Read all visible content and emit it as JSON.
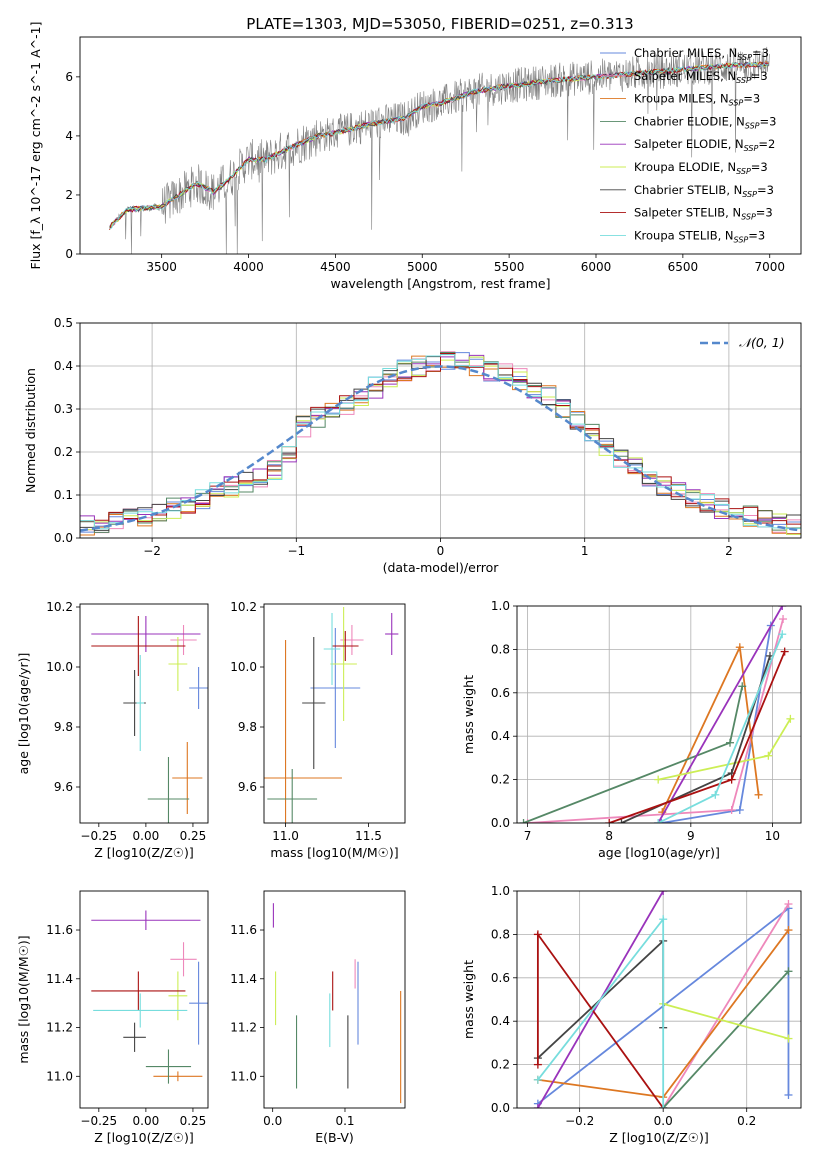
{
  "title": "PLATE=1303, MJD=53050, FIBERID=0251, z=0.313",
  "colors": {
    "Chabrier MILES": "#6688dd",
    "Salpeter MILES": "#ee88bb",
    "Kroupa MILES": "#dd7722",
    "Chabrier ELODIE": "#558866",
    "Salpeter ELODIE": "#9933bb",
    "Kroupa ELODIE": "#ccee55",
    "Chabrier STELIB": "#444444",
    "Salpeter STELIB": "#aa1111",
    "Kroupa STELIB": "#77dddd",
    "data": "#808080",
    "normal": "#5588cc"
  },
  "chart_data": [
    {
      "type": "line",
      "panel": "spectrum",
      "xlabel": "wavelength [Angstrom, rest frame]",
      "ylabel": "Flux [f_λ 10^-17 erg cm^-2 s^-1 A^-1]",
      "xlim": [
        3030,
        7180
      ],
      "ylim": [
        0,
        7.35
      ],
      "xticks": [
        3500,
        4000,
        4500,
        5000,
        5500,
        6000,
        6500,
        7000
      ],
      "yticks": [
        0,
        2,
        4,
        6
      ],
      "legend_position": "top-right",
      "grid": false,
      "data_series": {
        "name": "",
        "x": [
          3200,
          3300,
          3400,
          3500,
          3600,
          3700,
          3800,
          3900,
          4000,
          4100,
          4200,
          4300,
          4400,
          4500,
          4600,
          4700,
          4800,
          4900,
          5000,
          5100,
          5200,
          5300,
          5400,
          5500,
          5600,
          5700,
          5800,
          5900,
          6000,
          6100,
          6200,
          6300,
          6400,
          6500,
          6600,
          6700,
          6800,
          6900,
          7000
        ],
        "y": [
          0.9,
          1.5,
          1.55,
          1.6,
          2.0,
          2.4,
          2.1,
          2.6,
          3.2,
          3.2,
          3.5,
          3.75,
          4.0,
          4.1,
          4.25,
          4.4,
          4.5,
          4.6,
          5.0,
          5.1,
          5.3,
          5.5,
          5.6,
          5.7,
          5.75,
          5.85,
          5.9,
          5.95,
          6.0,
          6.05,
          6.1,
          6.15,
          6.2,
          6.25,
          6.3,
          6.35,
          6.4,
          6.4,
          6.45
        ]
      },
      "model_series": [
        {
          "name": "Chabrier MILES, N_SSP=3"
        },
        {
          "name": "Salpeter MILES, N_SSP=3"
        },
        {
          "name": "Kroupa MILES, N_SSP=3"
        },
        {
          "name": "Chabrier ELODIE, N_SSP=3"
        },
        {
          "name": "Salpeter ELODIE, N_SSP=2"
        },
        {
          "name": "Kroupa ELODIE, N_SSP=3"
        },
        {
          "name": "Chabrier STELIB, N_SSP=3"
        },
        {
          "name": "Salpeter STELIB, N_SSP=3"
        },
        {
          "name": "Kroupa STELIB, N_SSP=3"
        }
      ]
    },
    {
      "type": "line",
      "panel": "residuals",
      "xlabel": "(data-model)/error",
      "ylabel": "Normed distribution",
      "xlim": [
        -2.5,
        2.5
      ],
      "ylim": [
        0,
        0.5
      ],
      "xticks": [
        -2,
        -1,
        0,
        1,
        2
      ],
      "yticks": [
        0.0,
        0.1,
        0.2,
        0.3,
        0.4,
        0.5
      ],
      "grid": true,
      "legend_position": "top-right",
      "legend": "𝒩(0, 1)",
      "bin_edges": [
        -2.5,
        -2.4,
        -2.3,
        -2.2,
        -2.1,
        -2.0,
        -1.9,
        -1.8,
        -1.7,
        -1.6,
        -1.5,
        -1.4,
        -1.3,
        -1.2,
        -1.1,
        -1.0,
        -0.9,
        -0.8,
        -0.7,
        -0.6,
        -0.5,
        -0.4,
        -0.3,
        -0.2,
        -0.1,
        0.0,
        0.1,
        0.2,
        0.3,
        0.4,
        0.5,
        0.6,
        0.7,
        0.8,
        0.9,
        1.0,
        1.1,
        1.2,
        1.3,
        1.4,
        1.5,
        1.6,
        1.7,
        1.8,
        1.9,
        2.0,
        2.1,
        2.2,
        2.3,
        2.4,
        2.5
      ],
      "hist_base": [
        0.03,
        0.035,
        0.04,
        0.045,
        0.05,
        0.06,
        0.07,
        0.08,
        0.09,
        0.11,
        0.12,
        0.13,
        0.14,
        0.16,
        0.2,
        0.26,
        0.28,
        0.29,
        0.31,
        0.33,
        0.35,
        0.37,
        0.39,
        0.4,
        0.4,
        0.41,
        0.41,
        0.4,
        0.39,
        0.38,
        0.37,
        0.35,
        0.33,
        0.3,
        0.27,
        0.24,
        0.21,
        0.18,
        0.17,
        0.14,
        0.12,
        0.11,
        0.09,
        0.08,
        0.07,
        0.06,
        0.05,
        0.04,
        0.035,
        0.03
      ]
    },
    {
      "type": "scatter",
      "panel": "age_vs_Z",
      "xlabel": "Z [log10(Z/Z☉)]",
      "ylabel": "age [log10(age/yr)]",
      "xlim": [
        -0.35,
        0.33
      ],
      "ylim": [
        9.48,
        10.21
      ],
      "xticks": [
        -0.25,
        0.0,
        0.25
      ],
      "yticks": [
        9.6,
        9.8,
        10.0,
        10.2
      ],
      "points": [
        {
          "s": "Chabrier MILES",
          "x": 0.28,
          "y": 9.93,
          "xe": 0.05,
          "ye": 0.07
        },
        {
          "s": "Salpeter MILES",
          "x": 0.2,
          "y": 10.09,
          "xe": 0.07,
          "ye": 0.05
        },
        {
          "s": "Kroupa MILES",
          "x": 0.22,
          "y": 9.63,
          "xe": 0.08,
          "ye": 0.12
        },
        {
          "s": "Chabrier ELODIE",
          "x": 0.12,
          "y": 9.56,
          "xe": 0.11,
          "ye": 0.14
        },
        {
          "s": "Salpeter ELODIE",
          "x": 0.0,
          "y": 10.11,
          "xe": 0.29,
          "ye": 0.06
        },
        {
          "s": "Kroupa ELODIE",
          "x": 0.17,
          "y": 10.01,
          "xe": 0.05,
          "ye": 0.09
        },
        {
          "s": "Chabrier STELIB",
          "x": -0.06,
          "y": 9.88,
          "xe": 0.06,
          "ye": 0.11
        },
        {
          "s": "Salpeter STELIB",
          "x": -0.04,
          "y": 10.07,
          "xe": 0.25,
          "ye": 0.1
        },
        {
          "s": "Kroupa STELIB",
          "x": -0.03,
          "y": 9.88,
          "xe": 0.02,
          "ye": 0.16
        }
      ]
    },
    {
      "type": "scatter",
      "panel": "age_vs_mass",
      "xlabel": "mass [log10(M/M☉)]",
      "ylabel": "",
      "xlim": [
        10.87,
        11.72
      ],
      "ylim": [
        9.48,
        10.21
      ],
      "xticks": [
        11.0,
        11.5
      ],
      "yticks": [
        9.6,
        9.8,
        10.0,
        10.2
      ],
      "points": [
        {
          "s": "Chabrier MILES",
          "x": 11.3,
          "y": 9.93,
          "xe": 0.15,
          "ye": 0.2
        },
        {
          "s": "Salpeter MILES",
          "x": 11.4,
          "y": 10.09,
          "xe": 0.07,
          "ye": 0.05
        },
        {
          "s": "Kroupa MILES",
          "x": 11.0,
          "y": 9.63,
          "xe": 0.34,
          "ye": 0.46
        },
        {
          "s": "Chabrier ELODIE",
          "x": 11.04,
          "y": 9.56,
          "xe": 0.15,
          "ye": 0.1
        },
        {
          "s": "Salpeter ELODIE",
          "x": 11.64,
          "y": 10.11,
          "xe": 0.04,
          "ye": 0.07
        },
        {
          "s": "Kroupa ELODIE",
          "x": 11.35,
          "y": 10.01,
          "xe": 0.08,
          "ye": 0.19
        },
        {
          "s": "Chabrier STELIB",
          "x": 11.17,
          "y": 9.88,
          "xe": 0.07,
          "ye": 0.22
        },
        {
          "s": "Salpeter STELIB",
          "x": 11.36,
          "y": 10.07,
          "xe": 0.08,
          "ye": 0.05
        },
        {
          "s": "Kroupa STELIB",
          "x": 11.28,
          "y": 10.06,
          "xe": 0.05,
          "ye": 0.12
        }
      ]
    },
    {
      "type": "line",
      "panel": "mass_weight_vs_age",
      "xlabel": "age [log10(age/yr)]",
      "ylabel": "mass weight",
      "xlim": [
        6.87,
        10.35
      ],
      "ylim": [
        0,
        1
      ],
      "xticks": [
        7,
        8,
        9,
        10
      ],
      "yticks": [
        0.0,
        0.2,
        0.4,
        0.6,
        0.8,
        1.0
      ],
      "grid": true,
      "series": [
        {
          "s": "Chabrier MILES",
          "x": [
            8.64,
            9.6,
            9.98
          ],
          "y": [
            0.0,
            0.06,
            0.91
          ]
        },
        {
          "s": "Salpeter MILES",
          "x": [
            7.0,
            9.5,
            10.13
          ],
          "y": [
            0.0,
            0.06,
            0.94
          ]
        },
        {
          "s": "Kroupa MILES",
          "x": [
            8.65,
            9.6,
            9.83
          ],
          "y": [
            0.05,
            0.81,
            0.13
          ]
        },
        {
          "s": "Chabrier ELODIE",
          "x": [
            6.95,
            9.48,
            9.63
          ],
          "y": [
            0.0,
            0.37,
            0.63
          ]
        },
        {
          "s": "Salpeter ELODIE",
          "x": [
            8.6,
            10.12
          ],
          "y": [
            0.0,
            1.0
          ]
        },
        {
          "s": "Kroupa ELODIE",
          "x": [
            8.6,
            9.95,
            10.22
          ],
          "y": [
            0.2,
            0.31,
            0.48
          ]
        },
        {
          "s": "Chabrier STELIB",
          "x": [
            8.15,
            9.5,
            9.97
          ],
          "y": [
            0.0,
            0.23,
            0.77
          ]
        },
        {
          "s": "Salpeter STELIB",
          "x": [
            8.0,
            9.5,
            10.15
          ],
          "y": [
            0.0,
            0.2,
            0.79
          ]
        },
        {
          "s": "Kroupa STELIB",
          "x": [
            8.6,
            9.3,
            10.12
          ],
          "y": [
            0.0,
            0.13,
            0.87
          ]
        }
      ]
    },
    {
      "type": "scatter",
      "panel": "mass_vs_Z",
      "xlabel": "Z [log10(Z/Z☉)]",
      "ylabel": "mass [log10(M/M☉)]",
      "xlim": [
        -0.35,
        0.33
      ],
      "ylim": [
        10.87,
        11.76
      ],
      "xticks": [
        -0.25,
        0.0,
        0.25
      ],
      "yticks": [
        11.0,
        11.2,
        11.4,
        11.6
      ],
      "points": [
        {
          "s": "Chabrier MILES",
          "x": 0.28,
          "y": 11.3,
          "xe": 0.05,
          "ye": 0.17
        },
        {
          "s": "Salpeter MILES",
          "x": 0.2,
          "y": 11.48,
          "xe": 0.07,
          "ye": 0.07
        },
        {
          "s": "Kroupa MILES",
          "x": 0.17,
          "y": 11.0,
          "xe": 0.13,
          "ye": 0.02
        },
        {
          "s": "Chabrier ELODIE",
          "x": 0.12,
          "y": 11.04,
          "xe": 0.12,
          "ye": 0.07
        },
        {
          "s": "Salpeter ELODIE",
          "x": 0.0,
          "y": 11.64,
          "xe": 0.29,
          "ye": 0.04
        },
        {
          "s": "Kroupa ELODIE",
          "x": 0.17,
          "y": 11.33,
          "xe": 0.05,
          "ye": 0.1
        },
        {
          "s": "Chabrier STELIB",
          "x": -0.06,
          "y": 11.16,
          "xe": 0.06,
          "ye": 0.06
        },
        {
          "s": "Salpeter STELIB",
          "x": -0.04,
          "y": 11.35,
          "xe": 0.25,
          "ye": 0.08
        },
        {
          "s": "Kroupa STELIB",
          "x": -0.03,
          "y": 11.27,
          "xe": 0.25,
          "ye": 0.07
        }
      ]
    },
    {
      "type": "scatter",
      "panel": "mass_vs_EBV",
      "xlabel": "E(B-V)",
      "ylabel": "",
      "xlim": [
        -0.012,
        0.183
      ],
      "ylim": [
        10.87,
        11.76
      ],
      "xticks": [
        0.0,
        0.1
      ],
      "yticks": [
        11.0,
        11.2,
        11.4,
        11.6
      ],
      "points": [
        {
          "s": "Chabrier MILES",
          "x": 0.118,
          "y": 11.3,
          "ye": 0.17
        },
        {
          "s": "Salpeter MILES",
          "x": 0.114,
          "y": 11.42,
          "ye": 0.06
        },
        {
          "s": "Kroupa MILES",
          "x": 0.177,
          "y": 11.12,
          "ye": 0.23
        },
        {
          "s": "Chabrier ELODIE",
          "x": 0.033,
          "y": 11.1,
          "ye": 0.15
        },
        {
          "s": "Salpeter ELODIE",
          "x": 0.001,
          "y": 11.66,
          "ye": 0.05
        },
        {
          "s": "Kroupa ELODIE",
          "x": 0.004,
          "y": 11.32,
          "ye": 0.11
        },
        {
          "s": "Chabrier STELIB",
          "x": 0.104,
          "y": 11.1,
          "ye": 0.15
        },
        {
          "s": "Salpeter STELIB",
          "x": 0.083,
          "y": 11.35,
          "ye": 0.08
        },
        {
          "s": "Kroupa STELIB",
          "x": 0.079,
          "y": 11.23,
          "ye": 0.11
        }
      ]
    },
    {
      "type": "line",
      "panel": "mass_weight_vs_Z",
      "xlabel": "Z [log10(Z/Z☉)]",
      "ylabel": "mass weight",
      "xlim": [
        -0.35,
        0.33
      ],
      "ylim": [
        0,
        1
      ],
      "xticks": [
        -0.2,
        0.0,
        0.2
      ],
      "yticks": [
        0.0,
        0.2,
        0.4,
        0.6,
        0.8,
        1.0
      ],
      "grid": true,
      "series": [
        {
          "s": "Chabrier MILES",
          "x": [
            -0.3,
            0.3,
            0.3
          ],
          "y": [
            0.02,
            0.92,
            0.06
          ]
        },
        {
          "s": "Salpeter MILES",
          "x": [
            0.0,
            0.3
          ],
          "y": [
            0.0,
            0.94
          ]
        },
        {
          "s": "Kroupa MILES",
          "x": [
            -0.3,
            0.0,
            0.3
          ],
          "y": [
            0.13,
            0.05,
            0.82
          ]
        },
        {
          "s": "Chabrier ELODIE",
          "x": [
            0.0,
            0.3
          ],
          "y": [
            0.0,
            0.63
          ]
        },
        {
          "s": "Salpeter ELODIE",
          "x": [
            -0.3,
            0.0
          ],
          "y": [
            0.0,
            1.0
          ]
        },
        {
          "s": "Kroupa ELODIE",
          "x": [
            0.0,
            0.3
          ],
          "y": [
            0.48,
            0.32
          ]
        },
        {
          "s": "Chabrier STELIB",
          "x": [
            -0.3,
            0.0,
            0.0
          ],
          "y": [
            0.23,
            0.77,
            0.37
          ]
        },
        {
          "s": "Salpeter STELIB",
          "x": [
            -0.3,
            -0.3,
            0.0
          ],
          "y": [
            0.2,
            0.8,
            0.0
          ]
        },
        {
          "s": "Kroupa STELIB",
          "x": [
            -0.3,
            0.0,
            0.0
          ],
          "y": [
            0.13,
            0.87,
            0.0
          ]
        }
      ]
    }
  ]
}
